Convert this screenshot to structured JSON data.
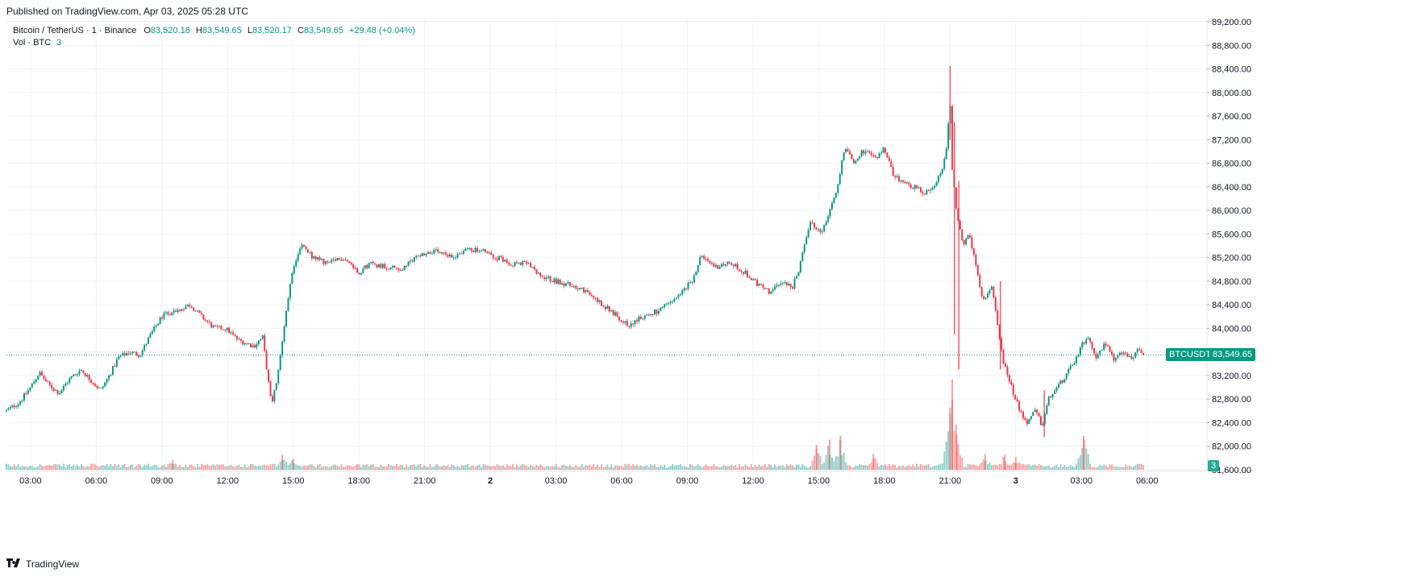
{
  "header": {
    "published": "Published on TradingView.com, Apr 03, 2025 05:28 UTC"
  },
  "legend": {
    "symbol": "Bitcoin / TetherUS · 1 · Binance",
    "o_label": "O",
    "o_value": "83,520.18",
    "h_label": "H",
    "h_value": "83,549.65",
    "l_label": "L",
    "l_value": "83,520.17",
    "c_label": "C",
    "c_value": "83,549.65",
    "change": "+29.48 (+0.04%)",
    "vol_label": "Vol · BTC",
    "vol_value": "3"
  },
  "price_tag": {
    "symbol": "BTCUSDT",
    "value": "83,549.65"
  },
  "volume_tag": "3",
  "footer": {
    "brand": "TradingView"
  },
  "colors": {
    "up": "#089981",
    "down": "#f23645",
    "vol_up": "#26a69a",
    "vol_down": "#ef5350",
    "grid": "#f0f3fa"
  },
  "chart_data": {
    "type": "candlestick",
    "symbol": "BTCUSDT",
    "interval": "1 minute",
    "ylim": [
      81600,
      89200
    ],
    "y_ticks": [
      81600,
      82000,
      82400,
      82800,
      83200,
      83600,
      84000,
      84400,
      84800,
      85200,
      85600,
      86000,
      86400,
      86800,
      87200,
      87600,
      88000,
      88400,
      88800,
      89200
    ],
    "y_tick_labels": [
      "81,600.00",
      "82,000.00",
      "82,400.00",
      "82,800.00",
      "83,200.00",
      "83,600.00",
      "84,000.00",
      "84,400.00",
      "84,800.00",
      "85,200.00",
      "85,600.00",
      "86,000.00",
      "86,400.00",
      "86,800.00",
      "87,200.00",
      "87,600.00",
      "88,000.00",
      "88,400.00",
      "88,800.00",
      "89,200.00"
    ],
    "xlim_hours": [
      1.9,
      53.9
    ],
    "x_ticks_hours": [
      3,
      6,
      9,
      12,
      15,
      18,
      21,
      24,
      27,
      30,
      33,
      36,
      39,
      42,
      45,
      48,
      51,
      54
    ],
    "x_tick_labels": [
      "03:00",
      "06:00",
      "09:00",
      "12:00",
      "15:00",
      "18:00",
      "21:00",
      "2",
      "03:00",
      "06:00",
      "09:00",
      "12:00",
      "15:00",
      "18:00",
      "21:00",
      "3",
      "03:00",
      "06:00"
    ],
    "last_price": 83549.65,
    "price_path": [
      [
        1.9,
        82600
      ],
      [
        2.5,
        82750
      ],
      [
        3.0,
        83000
      ],
      [
        3.4,
        83250
      ],
      [
        3.8,
        83050
      ],
      [
        4.3,
        82900
      ],
      [
        4.8,
        83150
      ],
      [
        5.3,
        83300
      ],
      [
        5.8,
        83100
      ],
      [
        6.2,
        82950
      ],
      [
        6.6,
        83200
      ],
      [
        7.0,
        83500
      ],
      [
        7.5,
        83600
      ],
      [
        8.0,
        83550
      ],
      [
        8.5,
        83900
      ],
      [
        9.0,
        84200
      ],
      [
        9.6,
        84300
      ],
      [
        10.3,
        84400
      ],
      [
        10.8,
        84200
      ],
      [
        11.4,
        84000
      ],
      [
        11.9,
        84000
      ],
      [
        12.5,
        83800
      ],
      [
        13.2,
        83700
      ],
      [
        13.6,
        83850
      ],
      [
        14.0,
        82700
      ],
      [
        14.3,
        83200
      ],
      [
        14.7,
        84400
      ],
      [
        15.0,
        85000
      ],
      [
        15.4,
        85400
      ],
      [
        15.9,
        85200
      ],
      [
        16.6,
        85100
      ],
      [
        17.3,
        85200
      ],
      [
        18.0,
        84950
      ],
      [
        18.5,
        85100
      ],
      [
        19.2,
        85050
      ],
      [
        20.0,
        85000
      ],
      [
        20.7,
        85250
      ],
      [
        21.5,
        85300
      ],
      [
        22.2,
        85200
      ],
      [
        23.0,
        85350
      ],
      [
        23.7,
        85300
      ],
      [
        24.3,
        85200
      ],
      [
        25.0,
        85100
      ],
      [
        25.7,
        85100
      ],
      [
        26.2,
        84900
      ],
      [
        27.0,
        84800
      ],
      [
        28.0,
        84700
      ],
      [
        28.8,
        84500
      ],
      [
        29.5,
        84300
      ],
      [
        30.3,
        84050
      ],
      [
        31.0,
        84200
      ],
      [
        31.7,
        84300
      ],
      [
        32.5,
        84500
      ],
      [
        33.2,
        84800
      ],
      [
        33.6,
        85200
      ],
      [
        34.3,
        85050
      ],
      [
        35.0,
        85100
      ],
      [
        35.6,
        84950
      ],
      [
        36.2,
        84750
      ],
      [
        36.8,
        84600
      ],
      [
        37.3,
        84800
      ],
      [
        37.8,
        84700
      ],
      [
        38.1,
        85000
      ],
      [
        38.6,
        85800
      ],
      [
        39.1,
        85600
      ],
      [
        39.8,
        86300
      ],
      [
        40.2,
        87100
      ],
      [
        40.6,
        86800
      ],
      [
        41.0,
        87000
      ],
      [
        41.6,
        86900
      ],
      [
        42.0,
        87050
      ],
      [
        42.4,
        86600
      ],
      [
        42.8,
        86500
      ],
      [
        43.3,
        86400
      ],
      [
        43.9,
        86300
      ],
      [
        44.4,
        86500
      ],
      [
        44.8,
        86900
      ],
      [
        45.0,
        87900
      ],
      [
        45.1,
        86700
      ],
      [
        45.3,
        86000
      ],
      [
        45.6,
        85400
      ],
      [
        45.9,
        85600
      ],
      [
        46.2,
        85000
      ],
      [
        46.5,
        84500
      ],
      [
        46.9,
        84700
      ],
      [
        47.2,
        84000
      ],
      [
        47.4,
        83500
      ],
      [
        47.8,
        83000
      ],
      [
        48.2,
        82600
      ],
      [
        48.5,
        82400
      ],
      [
        48.9,
        82600
      ],
      [
        49.2,
        82350
      ],
      [
        49.5,
        82800
      ],
      [
        49.9,
        83000
      ],
      [
        50.3,
        83200
      ],
      [
        50.7,
        83450
      ],
      [
        51.0,
        83700
      ],
      [
        51.3,
        83850
      ],
      [
        51.7,
        83500
      ],
      [
        52.1,
        83750
      ],
      [
        52.5,
        83450
      ],
      [
        52.9,
        83600
      ],
      [
        53.3,
        83450
      ],
      [
        53.6,
        83650
      ],
      [
        53.9,
        83550
      ]
    ],
    "price_spikes": [
      [
        45.0,
        88450,
        87200
      ],
      [
        45.2,
        87500,
        83900
      ],
      [
        45.4,
        86500,
        83300
      ],
      [
        47.3,
        84800,
        83300
      ],
      [
        49.3,
        82950,
        82150
      ]
    ],
    "volume_ylim": [
      0,
      9
    ],
    "volume_peaks": [
      [
        9.5,
        1
      ],
      [
        14.5,
        1.5
      ],
      [
        15.0,
        1.1
      ],
      [
        38.9,
        2.5
      ],
      [
        39.5,
        3.0
      ],
      [
        40.0,
        3.4
      ],
      [
        41.5,
        1.6
      ],
      [
        45.0,
        6.2
      ],
      [
        45.1,
        9.0
      ],
      [
        45.3,
        3.5
      ],
      [
        46.6,
        1.6
      ],
      [
        47.5,
        1.5
      ],
      [
        48.0,
        1.3
      ],
      [
        51.1,
        3.4
      ]
    ],
    "last_volume": 3
  }
}
